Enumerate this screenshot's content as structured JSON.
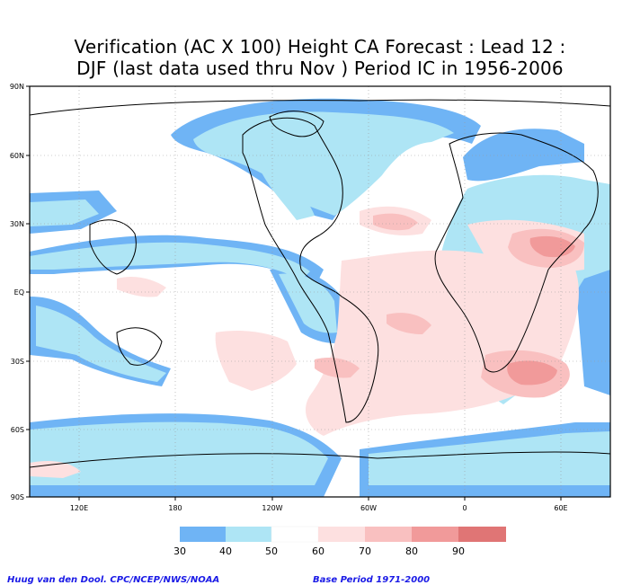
{
  "title": {
    "line1": "Verification (AC X 100) Height CA Forecast : Lead 12 :",
    "line2": "DJF (last data used thru Nov ) Period IC in 1956-2006"
  },
  "axes": {
    "lat_labels": [
      "90N",
      "60N",
      "30N",
      "EQ",
      "30S",
      "60S",
      "90S"
    ],
    "lon_labels": [
      "120E",
      "180",
      "120W",
      "60W",
      "0",
      "60E"
    ]
  },
  "colorbar": {
    "labels": [
      "30",
      "40",
      "50",
      "60",
      "70",
      "80",
      "90"
    ],
    "colors": [
      "#6fb4f5",
      "#aee5f5",
      "#ffffff",
      "#fde0e0",
      "#f9c0c0",
      "#f19a9a",
      "#e07575",
      "#d95858"
    ]
  },
  "colors": {
    "c30": "#6fb4f5",
    "c40": "#aee5f5",
    "c60": "#fde0e0",
    "c70": "#f9c0c0",
    "c80": "#f19a9a",
    "c90": "#e07575",
    "credit_blue": "#1a1ae6"
  },
  "footer": {
    "credit": "Huug van den Dool. CPC/NCEP/NWS/NOAA",
    "base_period": "Base Period 1971-2000"
  }
}
